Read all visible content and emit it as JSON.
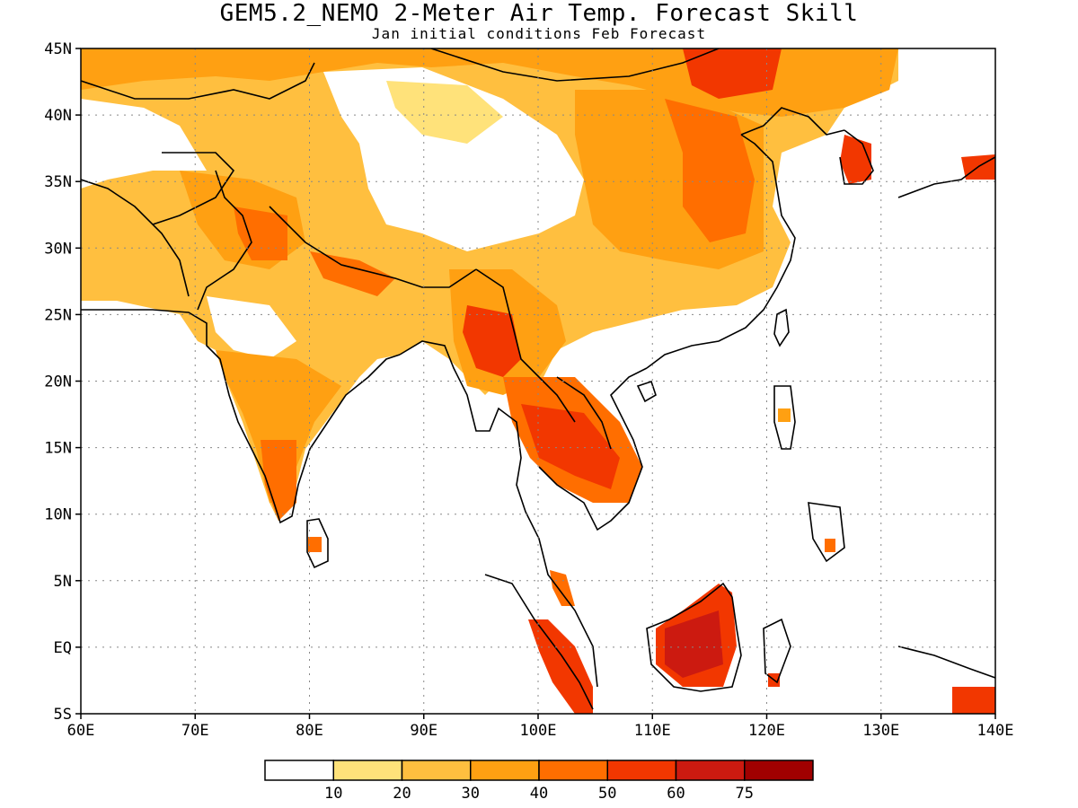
{
  "title": "GEM5.2_NEMO 2-Meter Air Temp. Forecast Skill",
  "subtitle": "Jan initial conditions  Feb Forecast",
  "axes": {
    "lat_labels": [
      "45N",
      "40N",
      "35N",
      "30N",
      "25N",
      "20N",
      "15N",
      "10N",
      "5N",
      "EQ",
      "5S"
    ],
    "lat_values": [
      45,
      40,
      35,
      30,
      25,
      20,
      15,
      10,
      5,
      0,
      -5
    ],
    "lon_labels": [
      "60E",
      "70E",
      "80E",
      "90E",
      "100E",
      "110E",
      "120E",
      "130E",
      "140E"
    ],
    "lon_values": [
      60,
      70,
      80,
      90,
      100,
      110,
      120,
      130,
      140
    ],
    "lon_range": [
      60,
      140
    ],
    "lat_range": [
      -5,
      45
    ]
  },
  "colorbar": {
    "colors": [
      "#ffffff",
      "#ffe27a",
      "#ffbf3f",
      "#ffa012",
      "#ff6e00",
      "#f23700",
      "#cc1a10",
      "#a00000"
    ],
    "labels": [
      "10",
      "20",
      "30",
      "40",
      "50",
      "60",
      "75"
    ]
  },
  "map": {
    "grid": "dotted",
    "fill_colors": {
      "orange_light": "#ffbf3f",
      "orange": "#ffa012",
      "orange_dark": "#ff6e00",
      "red": "#f23700",
      "dark_red": "#cc1a10",
      "yellow": "#ffe27a"
    }
  }
}
